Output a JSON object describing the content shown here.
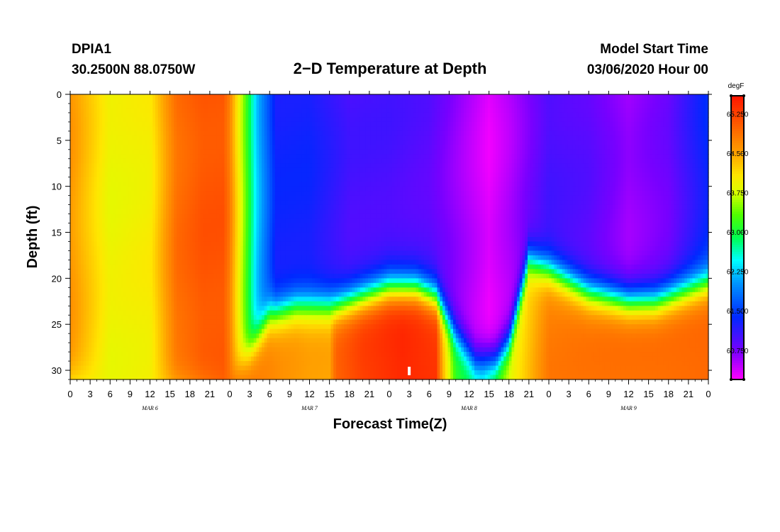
{
  "header": {
    "station": "DPIA1",
    "coords": "30.2500N 88.0750W",
    "model_label": "Model Start Time",
    "model_time": "03/06/2020 Hour 00"
  },
  "chart_data": {
    "type": "heatmap",
    "title": "2−D Temperature at Depth",
    "xlabel": "Forecast Time(Z)",
    "ylabel": "Depth (ft)",
    "x_range_hours": [
      0,
      96
    ],
    "y_range_ft": [
      0,
      31
    ],
    "x_tick_labels": [
      "0",
      "3",
      "6",
      "9",
      "12",
      "15",
      "18",
      "21",
      "0",
      "3",
      "6",
      "9",
      "12",
      "15",
      "18",
      "21",
      "0",
      "3",
      "6",
      "9",
      "12",
      "15",
      "18",
      "21",
      "0",
      "3",
      "6",
      "9",
      "12",
      "15",
      "18",
      "21",
      "0"
    ],
    "y_ticks": [
      0,
      5,
      10,
      15,
      20,
      25,
      30
    ],
    "date_labels": [
      {
        "label": "MAR  6",
        "hour": 12
      },
      {
        "label": "MAR  7",
        "hour": 36
      },
      {
        "label": "MAR  8",
        "hour": 60
      },
      {
        "label": "MAR  9",
        "hour": 84
      }
    ],
    "marker_hour": 51,
    "colorbar": {
      "unit": "degF",
      "range": [
        60.2,
        65.6
      ],
      "ticks": [
        "65.250",
        "64.500",
        "63.750",
        "63.000",
        "62.250",
        "61.500",
        "60.750"
      ],
      "tick_values": [
        65.25,
        64.5,
        63.75,
        63.0,
        62.25,
        61.5,
        60.75
      ]
    },
    "surface_temps_keyframes": [
      [
        0,
        64.6
      ],
      [
        6,
        63.9
      ],
      [
        12,
        64.0
      ],
      [
        16,
        64.9
      ],
      [
        20,
        65.1
      ],
      [
        23,
        65.1
      ],
      [
        24,
        64.8
      ],
      [
        26,
        63.6
      ],
      [
        28,
        62.3
      ],
      [
        31,
        61.3
      ],
      [
        36,
        61.3
      ],
      [
        42,
        61.0
      ],
      [
        48,
        61.0
      ],
      [
        54,
        60.9
      ],
      [
        60,
        60.5
      ],
      [
        63,
        60.3
      ],
      [
        66,
        60.5
      ],
      [
        72,
        61.0
      ],
      [
        78,
        60.9
      ],
      [
        84,
        60.6
      ],
      [
        90,
        60.8
      ],
      [
        93,
        61.1
      ],
      [
        96,
        61.4
      ]
    ],
    "bottom_temps_keyframes": [
      [
        0,
        63.9
      ],
      [
        12,
        64.0
      ],
      [
        24,
        64.9
      ],
      [
        32,
        64.6
      ],
      [
        36,
        64.5
      ],
      [
        39,
        64.5
      ],
      [
        40,
        65.0
      ],
      [
        44,
        65.3
      ],
      [
        50,
        65.5
      ],
      [
        55,
        65.4
      ],
      [
        56,
        64.5
      ],
      [
        58,
        63.2
      ],
      [
        62,
        62.7
      ],
      [
        66,
        63.8
      ],
      [
        72,
        64.8
      ],
      [
        84,
        64.9
      ],
      [
        96,
        65.0
      ]
    ],
    "thermocline_depth_keyframes": [
      [
        0,
        31
      ],
      [
        24,
        31
      ],
      [
        27,
        28
      ],
      [
        30,
        24
      ],
      [
        34,
        23
      ],
      [
        36,
        23
      ],
      [
        40,
        23
      ],
      [
        44,
        22
      ],
      [
        48,
        21
      ],
      [
        52,
        21
      ],
      [
        55,
        22
      ],
      [
        58,
        26
      ],
      [
        61,
        29
      ],
      [
        64,
        29
      ],
      [
        66,
        27
      ],
      [
        69,
        18
      ],
      [
        72,
        19
      ],
      [
        78,
        21.5
      ],
      [
        84,
        22.5
      ],
      [
        88,
        22.5
      ],
      [
        92,
        21.5
      ],
      [
        96,
        20.5
      ]
    ],
    "thermocline_width_ft": 2.4
  }
}
